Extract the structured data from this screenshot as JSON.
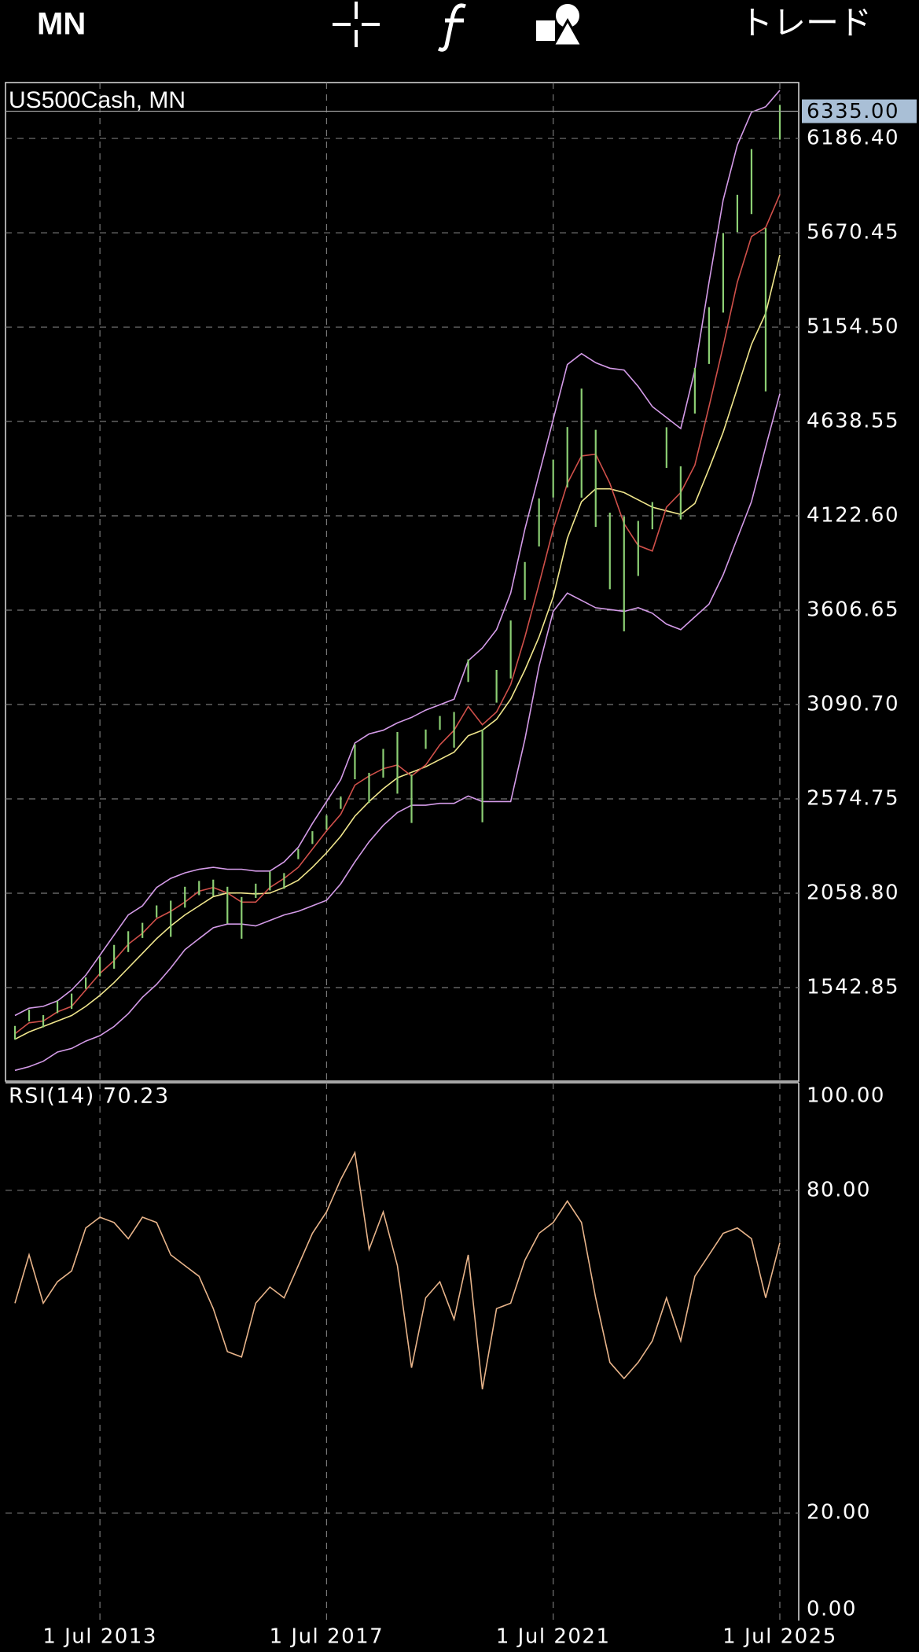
{
  "toolbar": {
    "timeframe": "MN",
    "trade": "トレード"
  },
  "chart_data": [
    {
      "type": "hilo",
      "title": "US500Cash, MN",
      "color": "#8ccf74",
      "grid": true,
      "x": [
        "2012-01",
        "2012-04",
        "2012-07",
        "2012-10",
        "2013-01",
        "2013-04",
        "2013-07",
        "2013-10",
        "2014-01",
        "2014-04",
        "2014-07",
        "2014-10",
        "2015-01",
        "2015-04",
        "2015-07",
        "2015-10",
        "2016-01",
        "2016-04",
        "2016-07",
        "2016-10",
        "2017-01",
        "2017-04",
        "2017-07",
        "2017-10",
        "2018-01",
        "2018-04",
        "2018-07",
        "2018-10",
        "2019-01",
        "2019-04",
        "2019-07",
        "2019-10",
        "2020-01",
        "2020-04",
        "2020-07",
        "2020-10",
        "2021-01",
        "2021-04",
        "2021-07",
        "2021-10",
        "2022-01",
        "2022-04",
        "2022-07",
        "2022-10",
        "2023-01",
        "2023-04",
        "2023-07",
        "2023-10",
        "2024-01",
        "2024-04",
        "2024-07",
        "2024-10",
        "2025-01",
        "2025-04",
        "2025-07"
      ],
      "high": [
        1333,
        1422,
        1392,
        1470,
        1510,
        1598,
        1710,
        1776,
        1851,
        1897,
        1992,
        2018,
        2094,
        2126,
        2133,
        2094,
        2038,
        2111,
        2178,
        2169,
        2301,
        2398,
        2484,
        2588,
        2873,
        2717,
        2848,
        2940,
        2708,
        2954,
        3028,
        3050,
        3338,
        2954,
        3280,
        3550,
        3870,
        4218,
        4430,
        4608,
        4818,
        4593,
        4140,
        4119,
        4095,
        4198,
        4607,
        4393,
        4931,
        5264,
        5669,
        5878,
        6128,
        5696,
        6370
      ],
      "low": [
        1258,
        1358,
        1325,
        1403,
        1426,
        1536,
        1604,
        1646,
        1737,
        1814,
        1926,
        1820,
        1980,
        2048,
        2044,
        1893,
        1810,
        2033,
        2074,
        2083,
        2245,
        2328,
        2407,
        2520,
        2682,
        2553,
        2691,
        2603,
        2443,
        2848,
        2952,
        2855,
        3214,
        2447,
        3101,
        3233,
        3663,
        3955,
        4223,
        4278,
        4222,
        4062,
        3721,
        3491,
        3794,
        4049,
        4385,
        4103,
        4682,
        4953,
        5234,
        5674,
        5773,
        4803,
        6180
      ],
      "series": [
        {
          "color": "#f0e68c",
          "values": [
            1260,
            1300,
            1330,
            1360,
            1390,
            1440,
            1500,
            1570,
            1650,
            1730,
            1810,
            1880,
            1940,
            1990,
            2040,
            2060,
            2060,
            2055,
            2060,
            2090,
            2130,
            2200,
            2280,
            2370,
            2480,
            2560,
            2630,
            2690,
            2720,
            2750,
            2790,
            2830,
            2920,
            2950,
            3010,
            3120,
            3280,
            3460,
            3680,
            4000,
            4200,
            4270,
            4270,
            4250,
            4210,
            4170,
            4150,
            4130,
            4190,
            4380,
            4580,
            4820,
            5060,
            5230,
            5550
          ]
        },
        {
          "color": "#d0504a",
          "values": [
            1290,
            1350,
            1360,
            1410,
            1440,
            1530,
            1620,
            1690,
            1780,
            1840,
            1920,
            1960,
            2010,
            2070,
            2090,
            2060,
            2010,
            2010,
            2090,
            2140,
            2200,
            2300,
            2400,
            2490,
            2650,
            2700,
            2740,
            2760,
            2700,
            2760,
            2870,
            2950,
            3080,
            2980,
            3050,
            3200,
            3460,
            3750,
            4050,
            4300,
            4450,
            4460,
            4300,
            4080,
            3960,
            3930,
            4170,
            4250,
            4400,
            4720,
            5050,
            5400,
            5650,
            5700,
            5880
          ]
        },
        {
          "color": "#d49be8",
          "values": [
            1390,
            1430,
            1440,
            1470,
            1530,
            1610,
            1720,
            1830,
            1940,
            1990,
            2090,
            2140,
            2170,
            2190,
            2200,
            2190,
            2190,
            2180,
            2180,
            2230,
            2310,
            2440,
            2560,
            2680,
            2880,
            2930,
            2950,
            2990,
            3020,
            3060,
            3090,
            3120,
            3330,
            3400,
            3500,
            3700,
            4050,
            4350,
            4650,
            4950,
            5010,
            4960,
            4930,
            4920,
            4830,
            4720,
            4660,
            4600,
            4920,
            5400,
            5850,
            6150,
            6330,
            6360,
            6450
          ]
        },
        {
          "color": "#d49be8",
          "values": [
            1090,
            1110,
            1140,
            1190,
            1210,
            1250,
            1280,
            1330,
            1400,
            1490,
            1560,
            1650,
            1750,
            1810,
            1870,
            1890,
            1890,
            1880,
            1910,
            1940,
            1960,
            1990,
            2020,
            2110,
            2230,
            2340,
            2430,
            2500,
            2540,
            2540,
            2550,
            2550,
            2590,
            2560,
            2560,
            2560,
            2900,
            3300,
            3600,
            3700,
            3660,
            3620,
            3610,
            3600,
            3620,
            3590,
            3530,
            3500,
            3570,
            3640,
            3800,
            4000,
            4200,
            4500,
            4790
          ]
        }
      ],
      "current_price": {
        "value": 6335,
        "label": "6335.00"
      },
      "xlim": [
        "2011-11-01",
        "2025-11-01"
      ],
      "xticks": [
        {
          "value": "2013-07-01",
          "label": "1 Jul 2013"
        },
        {
          "value": "2017-07-01",
          "label": "1 Jul 2017"
        },
        {
          "value": "2021-07-01",
          "label": "1 Jul 2021"
        },
        {
          "value": "2025-07-01",
          "label": "1 Jul 2025"
        }
      ],
      "ylim": [
        1031,
        6492
      ],
      "yticks": [
        {
          "value": 1542.85,
          "label": "1542.85"
        },
        {
          "value": 2058.8,
          "label": "2058.80"
        },
        {
          "value": 2574.75,
          "label": "2574.75"
        },
        {
          "value": 3090.7,
          "label": "3090.70"
        },
        {
          "value": 3606.65,
          "label": "3606.65"
        },
        {
          "value": 4122.6,
          "label": "4122.60"
        },
        {
          "value": 4638.55,
          "label": "4638.55"
        },
        {
          "value": 5154.5,
          "label": "5154.50"
        },
        {
          "value": 5670.45,
          "label": "5670.45"
        },
        {
          "value": 6186.4,
          "label": "6186.40"
        }
      ]
    },
    {
      "type": "line",
      "title": "RSI(14) 70.23",
      "color": "#e8b48a",
      "grid": true,
      "values": [
        59,
        68,
        59,
        63,
        65,
        73,
        75,
        74,
        71,
        75,
        74,
        68,
        66,
        64,
        58,
        50,
        49,
        59,
        62,
        60,
        66,
        72,
        76,
        82,
        87,
        69,
        76,
        66,
        47,
        60,
        63,
        56,
        68,
        43,
        58,
        59,
        67,
        72,
        74,
        78,
        74,
        60,
        48,
        45,
        48,
        52,
        60,
        52,
        64,
        68,
        72,
        73,
        71,
        60,
        70.23
      ],
      "ylim": [
        0,
        100
      ],
      "yticks": [
        {
          "value": 0,
          "label": "0.00"
        },
        {
          "value": 20,
          "label": "20.00"
        },
        {
          "value": 80,
          "label": "80.00"
        },
        {
          "value": 100,
          "label": "100.00"
        }
      ]
    }
  ]
}
